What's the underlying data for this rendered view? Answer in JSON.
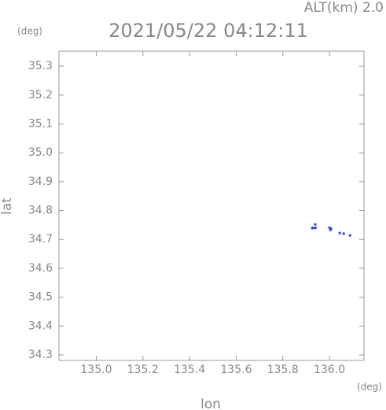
{
  "chart_data": {
    "type": "scatter",
    "title": "2021/05/22 04:12:11",
    "subtitle": "ALT(km) 2.0",
    "x_label": "lon",
    "y_label": "lat",
    "x_unit": "(deg)",
    "y_unit": "(deg)",
    "series": [
      {
        "name": null,
        "color": "#3344dd",
        "x": [
          135.926,
          135.93,
          135.939,
          135.94,
          136.0,
          136.004,
          136.007,
          136.044,
          136.061,
          136.088
        ],
        "values": [
          34.739,
          34.74,
          34.752,
          34.74,
          34.741,
          34.733,
          34.737,
          34.722,
          34.72,
          34.714
        ]
      }
    ],
    "xlim": [
      134.84,
      136.148
    ],
    "ylim": [
      34.281,
      35.352
    ],
    "xticks": [
      {
        "value": 135,
        "label": "135.0"
      },
      135.2,
      135.4,
      135.6,
      135.8,
      {
        "value": 136,
        "label": "136.0"
      }
    ],
    "yticks": [
      34.3,
      34.4,
      34.5,
      34.6,
      34.7,
      34.8,
      34.9,
      {
        "value": 35,
        "label": "35.0"
      },
      35.1,
      35.2,
      35.3
    ]
  }
}
